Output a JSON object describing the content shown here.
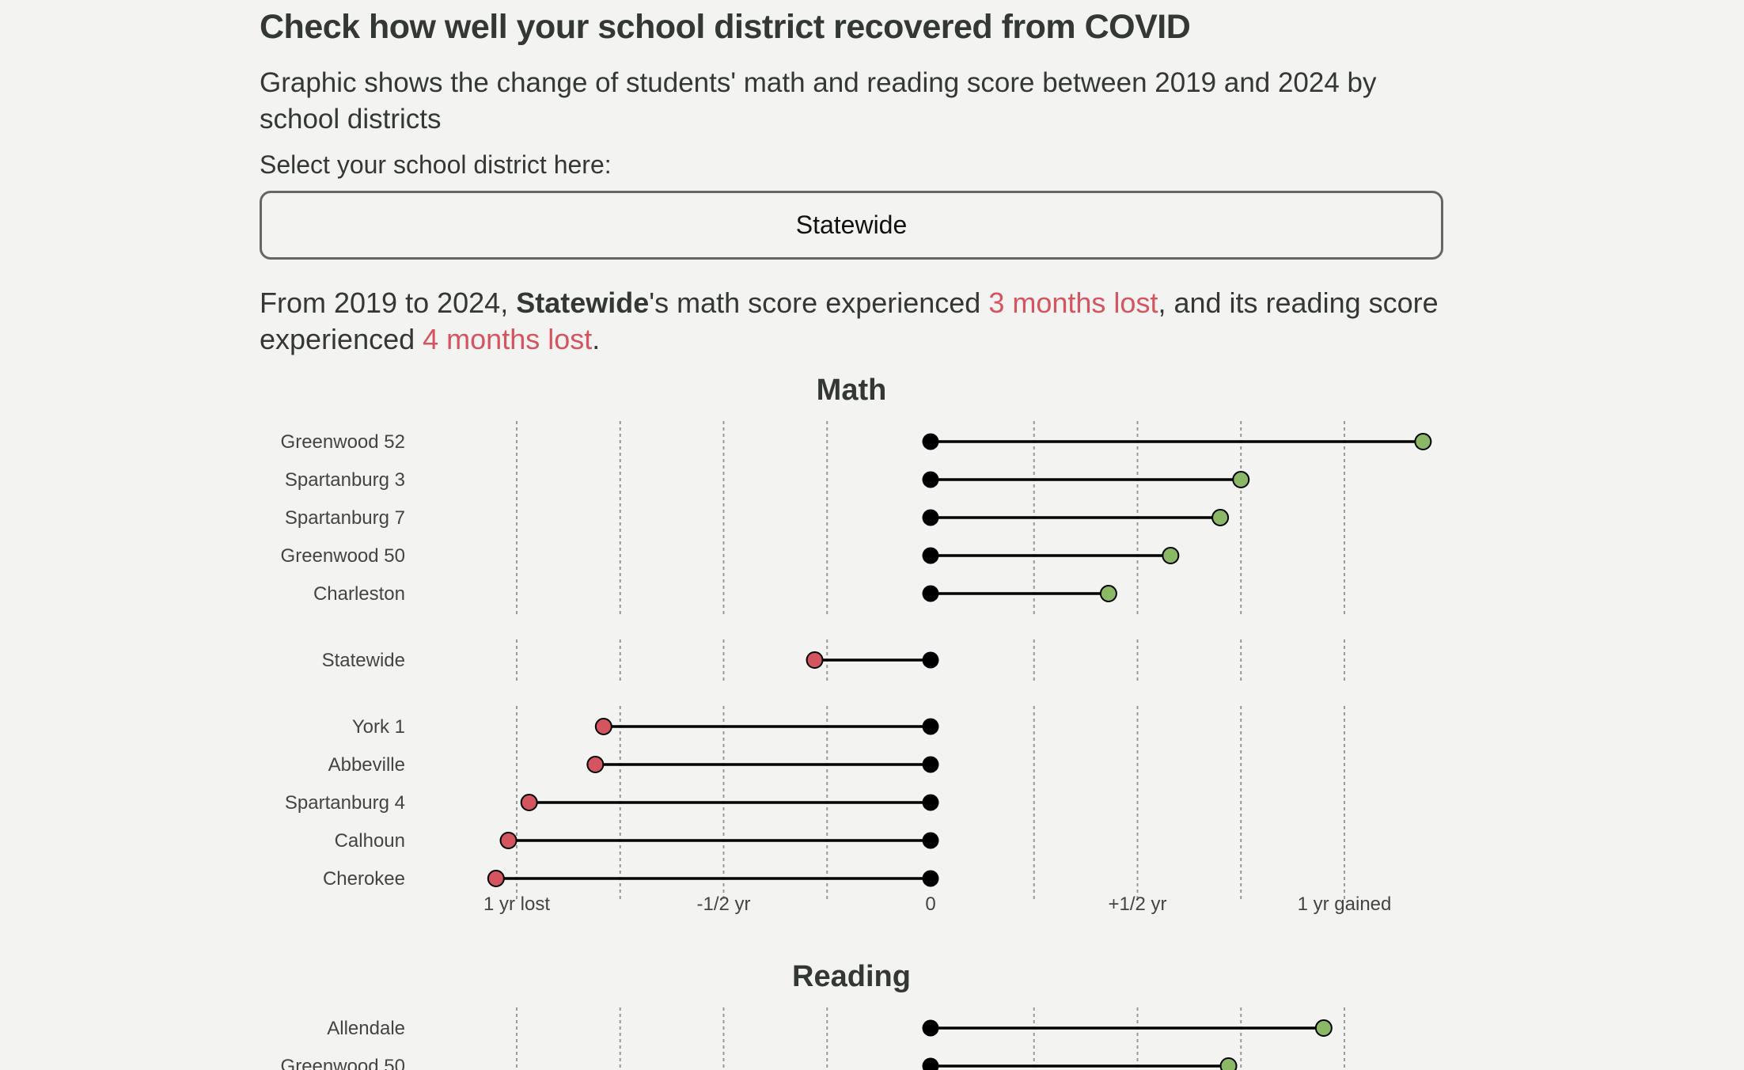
{
  "header": {
    "title": "Check how well your school district recovered from COVID",
    "subtitle": "Graphic shows the change of students' math and reading score between 2019 and 2024 by school districts"
  },
  "selector": {
    "label": "Select your school district here:",
    "selected": "Statewide"
  },
  "summary": {
    "prefix": "From 2019 to 2024, ",
    "district": "Statewide",
    "mid1": "'s math score experienced ",
    "math_change": "3 months lost",
    "mid2": ", and its reading score experienced ",
    "reading_change": "4 months lost",
    "suffix": "."
  },
  "colors": {
    "gain": "#8ab866",
    "loss": "#d4545f",
    "base": "#000000",
    "grid": "#999999"
  },
  "chart_data": [
    {
      "type": "dumbbell",
      "title": "Math",
      "x_unit": "years of learning",
      "xlim": [
        -1.25,
        1.25
      ],
      "tick_values": [
        -1,
        -0.5,
        0,
        0.5,
        1
      ],
      "tick_labels": [
        "1 yr lost",
        "-1/2 yr",
        "0",
        "+1/2 yr",
        "1 yr gained"
      ],
      "grid_values": [
        -1,
        -0.75,
        -0.5,
        -0.25,
        0,
        0.25,
        0.5,
        0.75,
        1
      ],
      "groups": [
        {
          "rows": [
            {
              "name": "Greenwood 52",
              "value": 1.19
            },
            {
              "name": "Spartanburg 3",
              "value": 0.75
            },
            {
              "name": "Spartanburg 7",
              "value": 0.7
            },
            {
              "name": "Greenwood 50",
              "value": 0.58
            },
            {
              "name": "Charleston",
              "value": 0.43
            }
          ]
        },
        {
          "rows": [
            {
              "name": "Statewide",
              "value": -0.28
            }
          ]
        },
        {
          "rows": [
            {
              "name": "York 1",
              "value": -0.79
            },
            {
              "name": "Abbeville",
              "value": -0.81
            },
            {
              "name": "Spartanburg 4",
              "value": -0.97
            },
            {
              "name": "Calhoun",
              "value": -1.02
            },
            {
              "name": "Cherokee",
              "value": -1.05
            }
          ]
        }
      ]
    },
    {
      "type": "dumbbell",
      "title": "Reading",
      "x_unit": "years of learning",
      "xlim": [
        -1.25,
        1.25
      ],
      "tick_values": [
        -1,
        -0.5,
        0,
        0.5,
        1
      ],
      "tick_labels": [],
      "grid_values": [
        -1,
        -0.75,
        -0.5,
        -0.25,
        0,
        0.25,
        0.5,
        0.75,
        1
      ],
      "groups": [
        {
          "rows": [
            {
              "name": "Allendale",
              "value": 0.95
            },
            {
              "name": "Greenwood 50",
              "value": 0.72
            }
          ]
        }
      ]
    }
  ]
}
